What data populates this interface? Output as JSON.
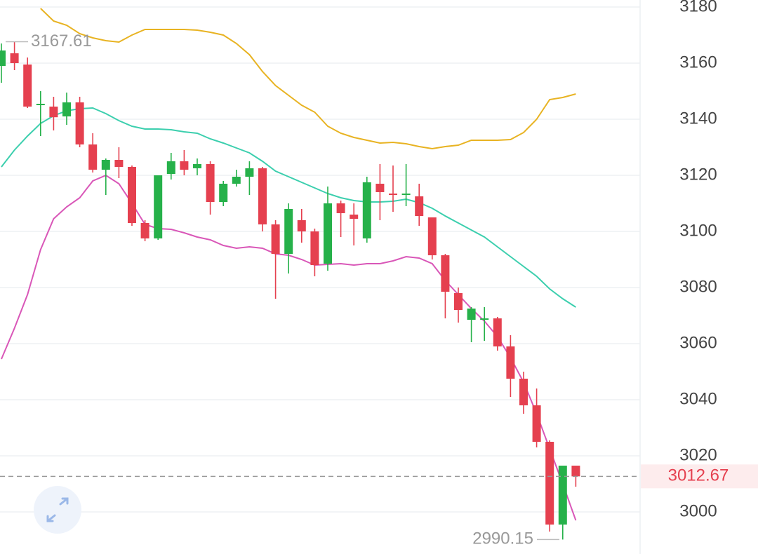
{
  "chart_data": {
    "type": "candlestick",
    "up_color": "#26b14a",
    "down_color": "#e5404f",
    "ylim": [
      2985,
      3182.5
    ],
    "yticks": [
      3000,
      3020,
      3040,
      3060,
      3080,
      3100,
      3120,
      3140,
      3160,
      3180
    ],
    "grid": true,
    "open": [
      3159,
      3163.5,
      3159.5,
      3145,
      3144.5,
      3141,
      3146,
      3131,
      3122,
      3125.5,
      3123,
      3103,
      3097.5,
      3120.5,
      3125,
      3122.5,
      3124,
      3110.5,
      3117,
      3119.5,
      3122.5,
      3102.5,
      3092,
      3104,
      3100,
      3088.5,
      3110,
      3106,
      3097.5,
      3117,
      3113.5,
      3113,
      3112.5,
      3105,
      3091.5,
      3078,
      3068.5,
      3068.5,
      3069,
      3059,
      3047.5,
      3038,
      3025,
      2995.5,
      3016.5
    ],
    "high": [
      3167,
      3167.61,
      3162,
      3150,
      3148,
      3149.5,
      3148,
      3135,
      3126,
      3130,
      3123.5,
      3104,
      3120,
      3128,
      3129,
      3126,
      3125,
      3118,
      3122,
      3125,
      3123,
      3104,
      3110,
      3108,
      3101,
      3116,
      3111,
      3110,
      3119.5,
      3124,
      3123.5,
      3124,
      3117,
      3105,
      3092,
      3080,
      3073,
      3073,
      3069.5,
      3063,
      3050,
      3044,
      3025.5,
      3016.5,
      3016.5
    ],
    "low": [
      3153,
      3157.5,
      3144,
      3134,
      3136,
      3138,
      3130,
      3121,
      3113,
      3119,
      3102,
      3096.5,
      3097,
      3118.5,
      3120,
      3120,
      3106,
      3109,
      3116,
      3113,
      3100,
      3076,
      3085,
      3096,
      3084,
      3086,
      3098,
      3095,
      3096,
      3104,
      3107,
      3109,
      3102,
      3090,
      3069,
      3067.5,
      3060.5,
      3061,
      3057.5,
      3041,
      3035,
      3023,
      2993,
      2990.15,
      3009
    ],
    "close": [
      3164.5,
      3160,
      3144.5,
      3145.5,
      3140.7,
      3146,
      3131,
      3122,
      3125.5,
      3123,
      3103,
      3097.5,
      3120,
      3125,
      3122,
      3124,
      3110.5,
      3117,
      3119.5,
      3122.5,
      3102.5,
      3092,
      3108,
      3100,
      3088,
      3110,
      3106.5,
      3104.5,
      3117.5,
      3114,
      3113,
      3113.5,
      3105.5,
      3091.5,
      3078.5,
      3072,
      3072.5,
      3069,
      3059,
      3047.5,
      3038,
      3025,
      2995.5,
      3016.5,
      3012.67
    ],
    "series": [
      {
        "color": "#e8b322",
        "values": [
          null,
          null,
          null,
          3179.5,
          3175,
          3173.5,
          3170.5,
          3169,
          3168,
          3167.5,
          3170,
          3172,
          3172,
          3172,
          3172,
          3171.75,
          3171,
          3170,
          3167,
          3163,
          3157,
          3152,
          3148.5,
          3145,
          3142.5,
          3137.5,
          3135,
          3133.5,
          3132.5,
          3131.5,
          3131.75,
          3131.25,
          3130.25,
          3129.5,
          3130.25,
          3130.75,
          3132.5,
          3132.5,
          3132.5,
          3132.75,
          3135.25,
          3140,
          3147,
          3147.75,
          3149
        ]
      },
      {
        "color": "#3ccfae",
        "values": [
          3123,
          3129,
          3134,
          3138.5,
          3141.25,
          3143,
          3143.75,
          3144,
          3142,
          3139.5,
          3137.5,
          3136.5,
          3136.5,
          3136.25,
          3135.5,
          3135,
          3133,
          3131.5,
          3129.75,
          3128,
          3125,
          3121.5,
          3119.5,
          3117.5,
          3115.5,
          3113.5,
          3112,
          3111,
          3110.5,
          3110.5,
          3110.75,
          3111.5,
          3110.25,
          3108.25,
          3105.5,
          3103,
          3100.5,
          3098,
          3094.5,
          3091,
          3087.5,
          3084,
          3079.5,
          3076,
          3073
        ]
      },
      {
        "color": "#d957b8",
        "values": [
          3054.5,
          3065.5,
          3077.5,
          3093.5,
          3104.5,
          3108.75,
          3112,
          3118,
          3120,
          3117,
          3110,
          3102.5,
          3101,
          3100.75,
          3099.5,
          3098,
          3097,
          3095,
          3094,
          3094.5,
          3094,
          3092,
          3091.5,
          3090,
          3088,
          3088.25,
          3088.5,
          3088,
          3088.5,
          3088.5,
          3089.5,
          3091,
          3090.5,
          3088.5,
          3082.5,
          3077.5,
          3072.5,
          3068,
          3062.5,
          3055,
          3046.25,
          3035,
          3022.5,
          3010,
          2997
        ]
      }
    ],
    "max_label": 3167.61,
    "min_label": 2990.15,
    "last_price": 3012.67
  }
}
